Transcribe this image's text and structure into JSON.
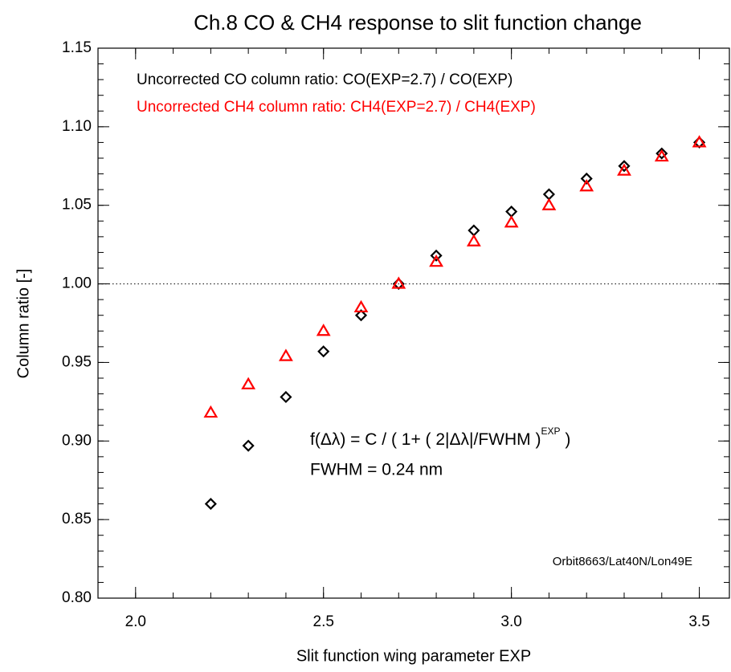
{
  "chart_data": {
    "type": "scatter",
    "title": "Ch.8 CO & CH4 response to slit function change",
    "xlabel": "Slit function wing parameter EXP",
    "ylabel": "Column ratio [-]",
    "xlim": [
      1.9,
      3.58
    ],
    "ylim": [
      0.8,
      1.15
    ],
    "xticks": [
      {
        "value": 2,
        "label": "2.0"
      },
      2.5,
      {
        "value": 3,
        "label": "3.0"
      },
      3.5
    ],
    "yticks": [
      {
        "value": 0.8,
        "label": "0.80"
      },
      0.85,
      {
        "value": 0.9,
        "label": "0.90"
      },
      0.95,
      {
        "value": 1,
        "label": "1.00"
      },
      1.05,
      {
        "value": 1.1,
        "label": "1.10"
      },
      1.15
    ],
    "minor_intervals": 5,
    "reference_line": 1.0,
    "series": [
      {
        "name": "Uncorrected CO column ratio:  CO(EXP=2.7) / CO(EXP)",
        "color": "#000000",
        "marker": "diamond",
        "x": [
          2.2,
          2.3,
          2.4,
          2.5,
          2.6,
          2.7,
          2.8,
          2.9,
          3.0,
          3.1,
          3.2,
          3.3,
          3.4,
          3.5
        ],
        "values": [
          0.86,
          0.897,
          0.928,
          0.957,
          0.98,
          1.0,
          1.018,
          1.034,
          1.046,
          1.057,
          1.067,
          1.075,
          1.083,
          1.09
        ]
      },
      {
        "name": "Uncorrected CH4 column ratio: CH4(EXP=2.7) / CH4(EXP)",
        "color": "#ff0000",
        "marker": "triangle",
        "x": [
          2.2,
          2.3,
          2.4,
          2.5,
          2.6,
          2.7,
          2.8,
          2.9,
          3.0,
          3.1,
          3.2,
          3.3,
          3.4,
          3.5
        ],
        "values": [
          0.918,
          0.936,
          0.954,
          0.97,
          0.985,
          1.0,
          1.014,
          1.027,
          1.039,
          1.05,
          1.062,
          1.072,
          1.081,
          1.09
        ]
      }
    ],
    "annotations": {
      "formula": "f(Δλ) = C / ( 1+ ( 2|Δλ|/FWHM )",
      "formula_superscript": "EXP",
      "formula_end": " )",
      "fwhm": "FWHM = 0.24 nm",
      "orbit": "Orbit8663/Lat40N/Lon49E"
    }
  }
}
